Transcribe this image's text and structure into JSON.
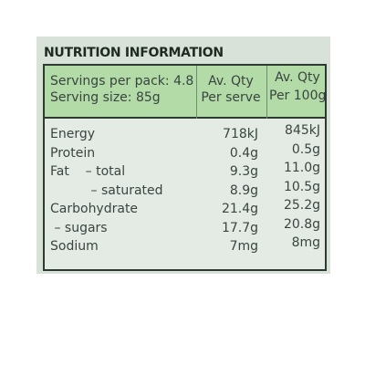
{
  "title": "NUTRITION INFORMATION",
  "header": {
    "servings": [
      "Servings per pack: 4.8",
      "Serving size: 85g"
    ],
    "per_serve": [
      "Av. Qty",
      "Per serve"
    ],
    "per_100g": [
      "Av. Qty",
      "Per 100g"
    ]
  },
  "table": {
    "rows": [
      [
        "Energy",
        "718kJ",
        "845kJ"
      ],
      [
        "Protein",
        "0.4g",
        "0.5g"
      ],
      [
        "Fat    – total",
        "9.3g",
        "11.0g"
      ],
      [
        "          – saturated",
        "8.9g",
        "10.5g"
      ],
      [
        "Carbohydrate",
        "21.4g",
        "25.2g"
      ],
      [
        " – sugars",
        "17.7g",
        "20.8g"
      ],
      [
        "Sodium",
        "7mg",
        "8mg"
      ]
    ]
  }
}
